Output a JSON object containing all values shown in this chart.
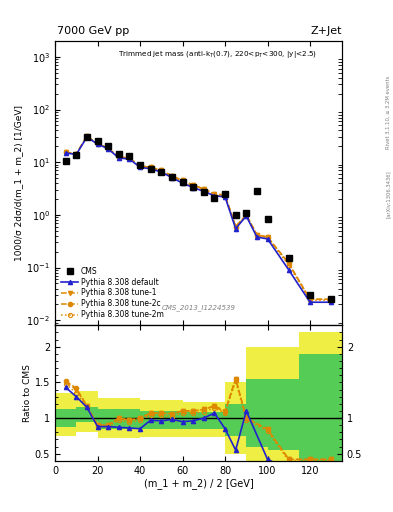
{
  "title_left": "7000 GeV pp",
  "title_right": "Z+Jet",
  "annotation": "Trimmed jet mass (anti-k$_T$(0.7), 220<p$_T$<300, |y|<2.5)",
  "cms_label": "CMS_2013_I1224539",
  "rivet_label": "Rivet 3.1.10, ≥ 3.2M events",
  "arxiv_label": "[arXiv:1306.3436]",
  "ylabel_main": "1000/σ 2dσ/d(m_1 + m_2) [1/GeV]",
  "ylabel_ratio": "Ratio to CMS",
  "xlabel": "(m_1 + m_2) / 2 [GeV]",
  "xlim": [
    0,
    135
  ],
  "ylim_main": [
    0.008,
    2000
  ],
  "ylim_ratio": [
    0.4,
    2.3
  ],
  "cms_x": [
    5,
    10,
    15,
    20,
    25,
    30,
    35,
    40,
    45,
    50,
    55,
    60,
    65,
    70,
    75,
    80,
    85,
    90,
    95,
    100,
    110,
    120,
    130
  ],
  "cms_y": [
    10.5,
    13.5,
    30,
    25,
    20,
    14,
    13,
    8.8,
    7.5,
    6.5,
    5.2,
    4.2,
    3.4,
    2.7,
    2.1,
    2.5,
    1.0,
    1.1,
    2.9,
    0.85,
    0.15,
    0.03,
    0.025
  ],
  "pythia_x": [
    5,
    10,
    15,
    20,
    25,
    30,
    35,
    40,
    45,
    50,
    55,
    60,
    65,
    70,
    75,
    80,
    85,
    90,
    95,
    100,
    110,
    120,
    130
  ],
  "default_y": [
    15,
    14,
    30,
    22,
    18,
    12,
    11.5,
    8.0,
    7.5,
    6.5,
    5.1,
    4.0,
    3.3,
    2.8,
    2.3,
    2.2,
    0.55,
    0.95,
    0.38,
    0.35,
    0.09,
    0.022,
    0.022
  ],
  "tune1_y": [
    15.5,
    14.5,
    31,
    22.5,
    18.5,
    12.5,
    12,
    8.5,
    8.0,
    7.0,
    5.5,
    4.5,
    3.7,
    3.1,
    2.5,
    2.3,
    0.6,
    1.0,
    0.42,
    0.38,
    0.12,
    0.025,
    0.025
  ],
  "tune2c_y": [
    15.5,
    14.5,
    31,
    22.5,
    18.5,
    12.5,
    12,
    8.5,
    8.0,
    7.0,
    5.5,
    4.5,
    3.7,
    3.1,
    2.5,
    2.4,
    0.6,
    1.0,
    0.42,
    0.38,
    0.12,
    0.025,
    0.025
  ],
  "tune2m_y": [
    15.5,
    14.2,
    30.5,
    22,
    18.2,
    12.2,
    11.8,
    8.3,
    7.8,
    6.8,
    5.3,
    4.3,
    3.5,
    2.9,
    2.4,
    2.3,
    0.58,
    0.97,
    0.4,
    0.37,
    0.11,
    0.024,
    0.024
  ],
  "ratio_x": [
    5,
    10,
    15,
    20,
    25,
    30,
    35,
    40,
    45,
    50,
    55,
    60,
    65,
    70,
    75,
    80,
    85,
    90,
    100,
    110,
    120,
    130
  ],
  "ratio_default": [
    1.43,
    1.3,
    1.15,
    0.88,
    0.88,
    0.87,
    0.86,
    0.85,
    0.97,
    0.96,
    0.98,
    0.95,
    0.96,
    1.0,
    1.07,
    0.85,
    0.55,
    1.1,
    0.42,
    0.28,
    0.28,
    0.28
  ],
  "ratio_tune1": [
    1.5,
    1.4,
    1.17,
    0.9,
    0.9,
    1.0,
    0.97,
    1.0,
    1.07,
    1.07,
    1.06,
    1.1,
    1.1,
    1.12,
    1.17,
    1.08,
    1.55,
    1.0,
    0.84,
    0.42,
    0.42,
    0.42
  ],
  "ratio_tune2c": [
    1.52,
    1.42,
    1.17,
    0.9,
    0.9,
    1.0,
    0.97,
    1.0,
    1.07,
    1.07,
    1.06,
    1.1,
    1.1,
    1.12,
    1.17,
    1.1,
    1.55,
    1.0,
    0.84,
    0.42,
    0.42,
    0.42
  ],
  "ratio_tune2m": [
    1.48,
    1.35,
    1.15,
    0.88,
    0.88,
    0.97,
    0.94,
    0.97,
    1.04,
    1.04,
    1.02,
    1.07,
    1.07,
    1.09,
    1.14,
    1.07,
    1.52,
    0.97,
    0.82,
    0.4,
    0.4,
    0.4
  ],
  "band_x_edges": [
    0,
    10,
    20,
    30,
    40,
    50,
    60,
    70,
    80,
    90,
    100,
    115,
    135
  ],
  "band_yellow_lo": [
    0.75,
    0.8,
    0.72,
    0.72,
    0.73,
    0.73,
    0.73,
    0.73,
    0.5,
    0.4,
    0.3,
    0.2,
    0.2
  ],
  "band_yellow_hi": [
    1.35,
    1.38,
    1.28,
    1.28,
    1.25,
    1.25,
    1.23,
    1.23,
    1.5,
    2.0,
    2.0,
    2.2,
    2.2
  ],
  "band_green_lo": [
    0.88,
    0.95,
    0.84,
    0.84,
    0.85,
    0.85,
    0.85,
    0.85,
    0.75,
    0.6,
    0.55,
    0.4,
    0.4
  ],
  "band_green_hi": [
    1.12,
    1.15,
    1.12,
    1.12,
    1.1,
    1.1,
    1.09,
    1.09,
    1.2,
    1.55,
    1.55,
    1.9,
    1.9
  ],
  "color_default": "#2222cc",
  "color_tune1": "#dd8800",
  "color_tune2c": "#dd8800",
  "color_tune2m": "#dd8800",
  "color_cms": "#000000",
  "color_green": "#55cc55",
  "color_yellow": "#eeee44"
}
